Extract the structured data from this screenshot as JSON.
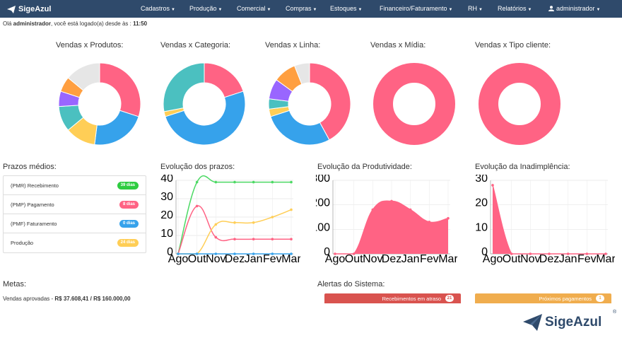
{
  "brand": {
    "name": "SigeAzul"
  },
  "nav": {
    "items": [
      {
        "label": "Cadastros"
      },
      {
        "label": "Produção"
      },
      {
        "label": "Comercial"
      },
      {
        "label": "Compras"
      },
      {
        "label": "Estoques"
      },
      {
        "label": "Financeiro/Faturamento"
      },
      {
        "label": "RH"
      },
      {
        "label": "Relatórios"
      }
    ],
    "user": "administrador"
  },
  "welcome": {
    "prefix": "Olá ",
    "user": "administrador",
    "middle": ", você está logado(a) desde às : ",
    "time": "11:50"
  },
  "donuts": [
    {
      "title": "Vendas x Produtos:",
      "slices": [
        {
          "value": 30,
          "color": "#ff6384"
        },
        {
          "value": 22,
          "color": "#36a2eb"
        },
        {
          "value": 12,
          "color": "#ffce56"
        },
        {
          "value": 10,
          "color": "#4bc0c0"
        },
        {
          "value": 6,
          "color": "#9966ff"
        },
        {
          "value": 6,
          "color": "#ff9f40"
        },
        {
          "value": 14,
          "color": "#e6e6e6"
        }
      ]
    },
    {
      "title": "Vendas x Categoria:",
      "slices": [
        {
          "value": 20,
          "color": "#ff6384"
        },
        {
          "value": 50,
          "color": "#36a2eb"
        },
        {
          "value": 2,
          "color": "#ffce56"
        },
        {
          "value": 28,
          "color": "#4bc0c0"
        }
      ]
    },
    {
      "title": "Vendas x Linha:",
      "slices": [
        {
          "value": 42,
          "color": "#ff6384"
        },
        {
          "value": 28,
          "color": "#36a2eb"
        },
        {
          "value": 3,
          "color": "#ffce56"
        },
        {
          "value": 4,
          "color": "#4bc0c0"
        },
        {
          "value": 8,
          "color": "#9966ff"
        },
        {
          "value": 9,
          "color": "#ff9f40"
        },
        {
          "value": 6,
          "color": "#e6e6e6"
        }
      ]
    },
    {
      "title": "Vendas x Mídia:",
      "slices": [
        {
          "value": 100,
          "color": "#ff6384"
        }
      ]
    },
    {
      "title": "Vendas x Tipo cliente:",
      "slices": [
        {
          "value": 100,
          "color": "#ff6384"
        }
      ]
    }
  ],
  "prazos": {
    "title": "Prazos médios:",
    "rows": [
      {
        "label": "(PMR) Recebimento",
        "badge": "39 dias",
        "color": "#2ecc40"
      },
      {
        "label": "(PMP) Pagamento",
        "badge": "8 dias",
        "color": "#ff6384"
      },
      {
        "label": "(PMF) Faturamento",
        "badge": "0 dias",
        "color": "#36a2eb"
      },
      {
        "label": "Produção",
        "badge": "24 dias",
        "color": "#ffce56"
      }
    ]
  },
  "chart_data": [
    {
      "type": "line",
      "title": "Evolução dos prazos:",
      "categories": [
        "Ago",
        "Out",
        "Nov",
        "Dez",
        "Jan",
        "Fev",
        "Mar"
      ],
      "ylim": [
        0,
        40
      ],
      "yticks": [
        0,
        10,
        20,
        30,
        40
      ],
      "series": [
        {
          "color": "#4cd964",
          "values": [
            0,
            39,
            39,
            39,
            39,
            39,
            39
          ]
        },
        {
          "color": "#ff6384",
          "values": [
            0,
            26,
            9,
            8,
            8,
            8,
            8
          ]
        },
        {
          "color": "#ffce56",
          "values": [
            0,
            0,
            16,
            17,
            17,
            20,
            24
          ]
        },
        {
          "color": "#36a2eb",
          "values": [
            0,
            0,
            0,
            0,
            0,
            0,
            0
          ]
        }
      ]
    },
    {
      "type": "area",
      "title": "Evolução da Produtividade:",
      "categories": [
        "Ago",
        "Out",
        "Nov",
        "Dez",
        "Jan",
        "Fev",
        "Mar"
      ],
      "ylim": [
        0,
        300
      ],
      "yticks": [
        0,
        100,
        200,
        300
      ],
      "series": [
        {
          "color": "#ff6384",
          "values": [
            0,
            0,
            180,
            215,
            180,
            130,
            145
          ]
        }
      ]
    },
    {
      "type": "area",
      "title": "Evolução da Inadimplência:",
      "categories": [
        "Ago",
        "Out",
        "Nov",
        "Dez",
        "Jan",
        "Fev",
        "Mar"
      ],
      "ylim": [
        0,
        30
      ],
      "yticks": [
        0,
        10,
        20,
        30
      ],
      "series": [
        {
          "color": "#ff6384",
          "values": [
            28,
            0,
            0,
            0,
            0,
            0,
            0
          ]
        }
      ]
    }
  ],
  "metas": {
    "title": "Metas:",
    "label": "Vendas aprovadas - ",
    "value": "R$ 37.608,41 / R$ 160.000,00"
  },
  "alertas": {
    "title": "Alertas do Sistema:",
    "buttons": [
      {
        "label": "Recebimentos em atraso",
        "count": "21",
        "color": "#d9534f"
      },
      {
        "label": "Próximos pagamentos",
        "count": "1",
        "color": "#f0ad4e"
      }
    ]
  },
  "footer_logo": {
    "text": "SigeAzul",
    "mark": "®"
  }
}
